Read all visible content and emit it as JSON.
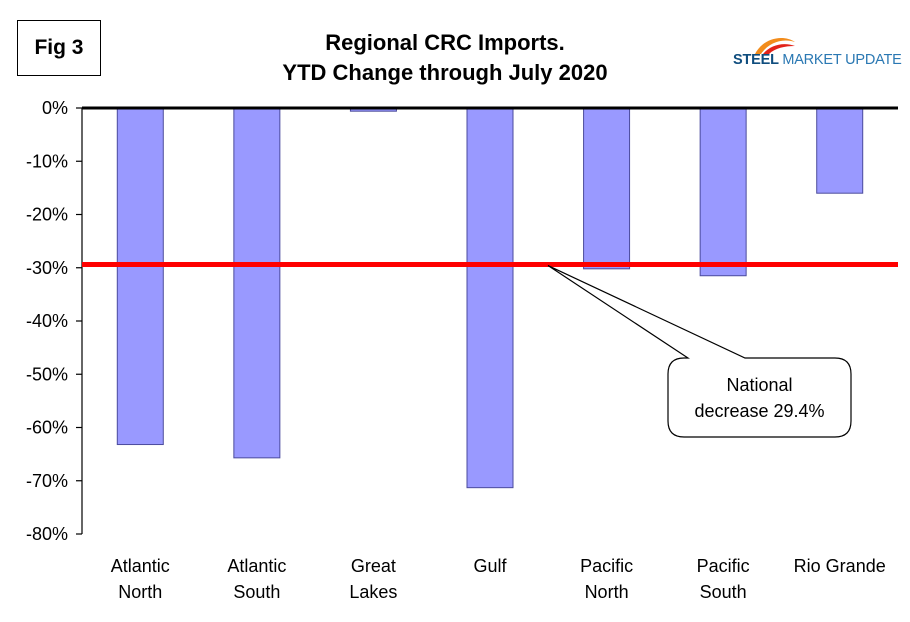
{
  "fig_label": "Fig 3",
  "title_line1": "Regional CRC Imports.",
  "title_line2": "YTD Change through July 2020",
  "logo": {
    "word1": "STEEL",
    "word2": "MARKET UPDATE",
    "icon": "swoosh-logo-icon"
  },
  "colors": {
    "bar": "#9999ff",
    "bar_stroke": "#4b4b9c",
    "reference_line": "#ff0000",
    "zero_line": "#000000"
  },
  "chart_data": {
    "type": "bar",
    "categories": [
      [
        "Atlantic",
        "North"
      ],
      [
        "Atlantic",
        "South"
      ],
      [
        "Great",
        "Lakes"
      ],
      [
        "Gulf"
      ],
      [
        "Pacific",
        "North"
      ],
      [
        "Pacific",
        "South"
      ],
      [
        "Rio Grande"
      ]
    ],
    "values": [
      -63.2,
      -65.7,
      -0.6,
      -71.3,
      -30.2,
      -31.5,
      -16.0
    ],
    "ylim": [
      -80,
      0
    ],
    "yticks": [
      0,
      -10,
      -20,
      -30,
      -40,
      -50,
      -60,
      -70,
      -80
    ],
    "ytick_labels": [
      "0%",
      "-10%",
      "-20%",
      "-30%",
      "-40%",
      "-50%",
      "-60%",
      "-70%",
      "-80%"
    ],
    "reference_value": -29.4,
    "annotation": {
      "line1": "National",
      "line2": "decrease 29.4%"
    },
    "grid": false,
    "legend": "none"
  }
}
